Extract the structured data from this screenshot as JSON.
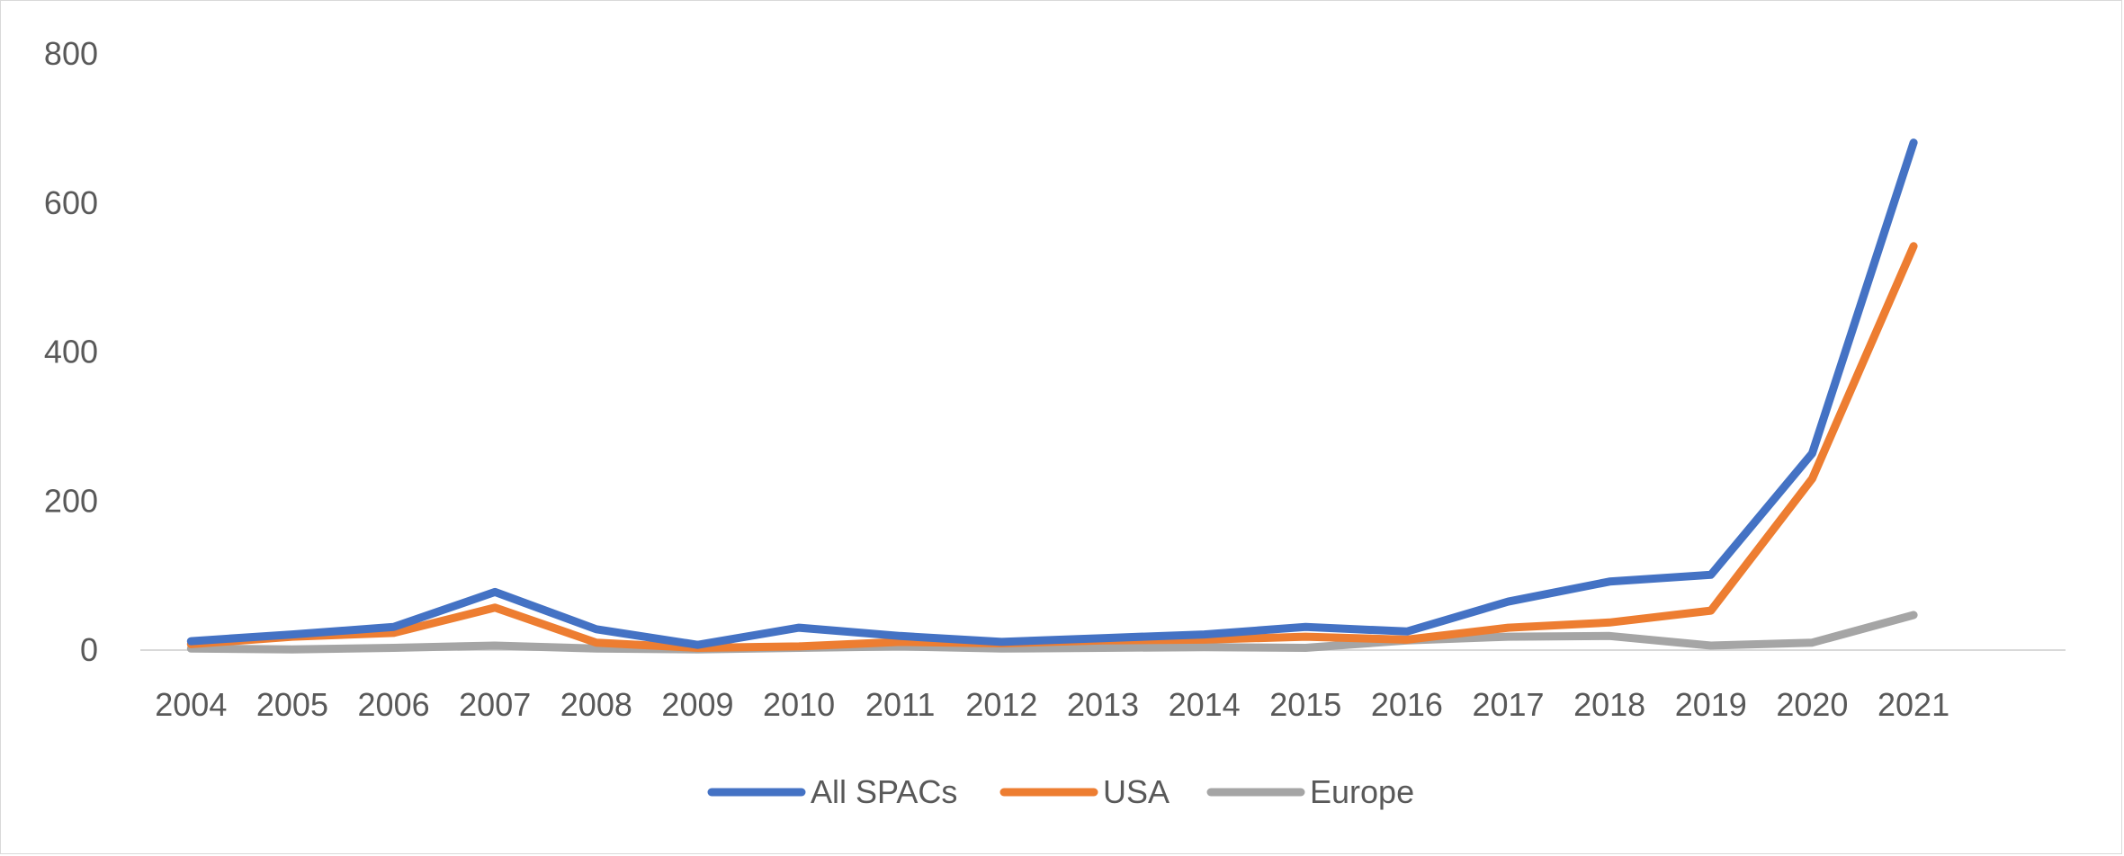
{
  "chart_data": {
    "type": "line",
    "title": "",
    "xlabel": "",
    "ylabel": "",
    "categories": [
      "2004",
      "2005",
      "2006",
      "2007",
      "2008",
      "2009",
      "2010",
      "2011",
      "2012",
      "2013",
      "2014",
      "2015",
      "2016",
      "2017",
      "2018",
      "2019",
      "2020",
      "2021"
    ],
    "yticks": [
      "0",
      "200",
      "400",
      "600",
      "800"
    ],
    "ylim": [
      0,
      800
    ],
    "grid": false,
    "legend_position": "bottom",
    "series": [
      {
        "name": "All SPACs",
        "color": "#4472C4",
        "values": [
          12,
          21,
          31,
          78,
          28,
          7,
          30,
          19,
          11,
          16,
          21,
          31,
          25,
          65,
          92,
          101,
          264,
          681
        ]
      },
      {
        "name": "USA",
        "color": "#ED7D31",
        "values": [
          8,
          18,
          23,
          57,
          10,
          3,
          5,
          11,
          9,
          13,
          14,
          18,
          14,
          30,
          37,
          53,
          230,
          542
        ]
      },
      {
        "name": "Europe",
        "color": "#A5A5A5",
        "values": [
          2,
          1,
          3,
          6,
          2,
          1,
          3,
          5,
          2,
          3,
          4,
          3,
          13,
          18,
          19,
          6,
          10,
          47
        ]
      }
    ]
  }
}
